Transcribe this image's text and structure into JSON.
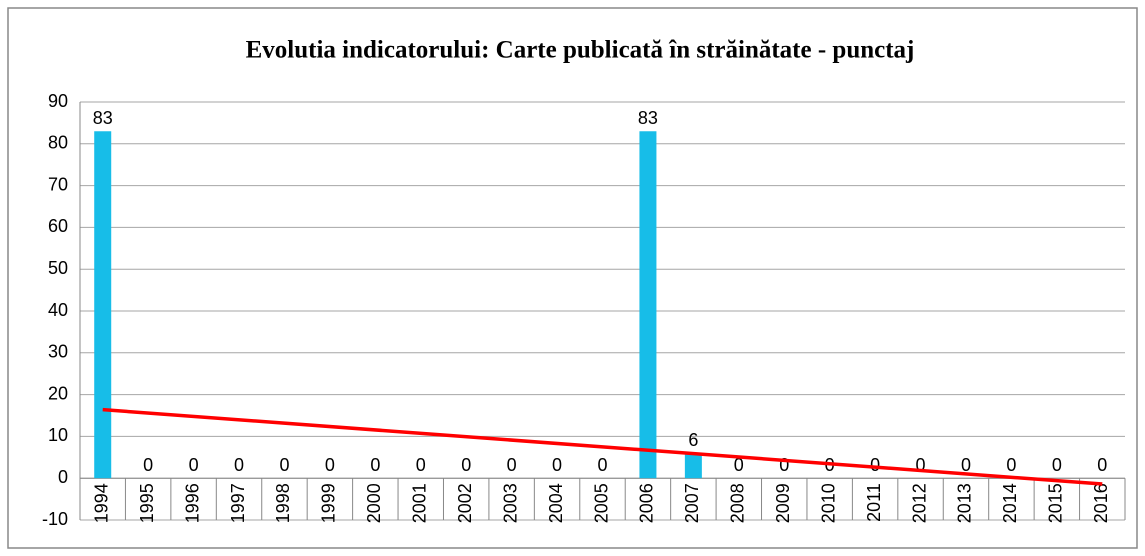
{
  "chart_data": {
    "type": "bar",
    "title": "Evolutia indicatorului: Carte publicată în străinătate - punctaj",
    "categories": [
      "1994",
      "1995",
      "1996",
      "1997",
      "1998",
      "1999",
      "2000",
      "2001",
      "2002",
      "2003",
      "2004",
      "2005",
      "2006",
      "2007",
      "2008",
      "2009",
      "2010",
      "2011",
      "2012",
      "2013",
      "2014",
      "2015",
      "2016"
    ],
    "values": [
      83,
      0,
      0,
      0,
      0,
      0,
      0,
      0,
      0,
      0,
      0,
      0,
      83,
      6,
      0,
      0,
      0,
      0,
      0,
      0,
      0,
      0,
      0
    ],
    "color": "#17bde8",
    "trendline": {
      "color": "#ff0000",
      "values": [
        16.4,
        -1.4
      ]
    },
    "ylim": [
      -10,
      90
    ],
    "yticks": [
      -10,
      0,
      10,
      20,
      30,
      40,
      50,
      60,
      70,
      80,
      90
    ],
    "grid": true
  }
}
